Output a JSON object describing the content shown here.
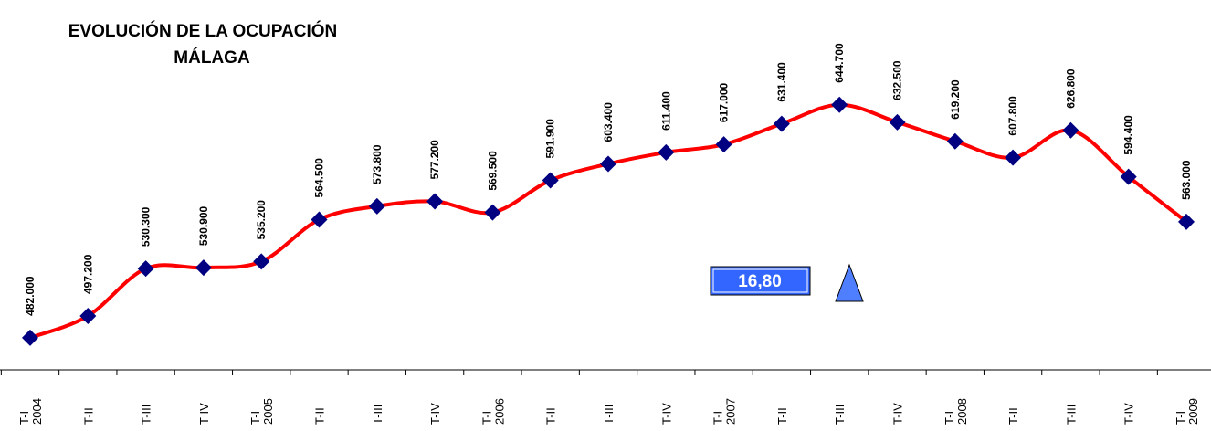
{
  "chart_data": {
    "type": "line",
    "title": "EVOLUCIÓN DE LA OCUPACIÓN",
    "subtitle": "MÁLAGA",
    "categories": [
      "T-I 2004",
      "T-II",
      "T-III",
      "T-IV",
      "T-I 2005",
      "T-II",
      "T-III",
      "T-IV",
      "T-I 2006",
      "T-II",
      "T-III",
      "T-IV",
      "T-I 2007",
      "T-II",
      "T-III",
      "T-IV",
      "T-I 2008",
      "T-II",
      "T-III",
      "T-IV",
      "T-I 2009"
    ],
    "series": [
      {
        "color": "#ff0000",
        "values": [
          482000,
          497200,
          530300,
          530900,
          535200,
          564500,
          573800,
          577200,
          569500,
          591900,
          603400,
          611400,
          617000,
          631400,
          644700,
          632500,
          619200,
          607800,
          626800,
          594400,
          563000
        ],
        "value_labels": [
          "482.000",
          "497.200",
          "530.300",
          "530.900",
          "535.200",
          "564.500",
          "573.800",
          "577.200",
          "569.500",
          "591.900",
          "603.400",
          "611.400",
          "617.000",
          "631.400",
          "644.700",
          "632.500",
          "619.200",
          "607.800",
          "626.800",
          "594.400",
          "563.000"
        ]
      }
    ],
    "marker_color": "#000080",
    "ylim": [
      450000,
      700000
    ],
    "annotation": "16,80"
  }
}
